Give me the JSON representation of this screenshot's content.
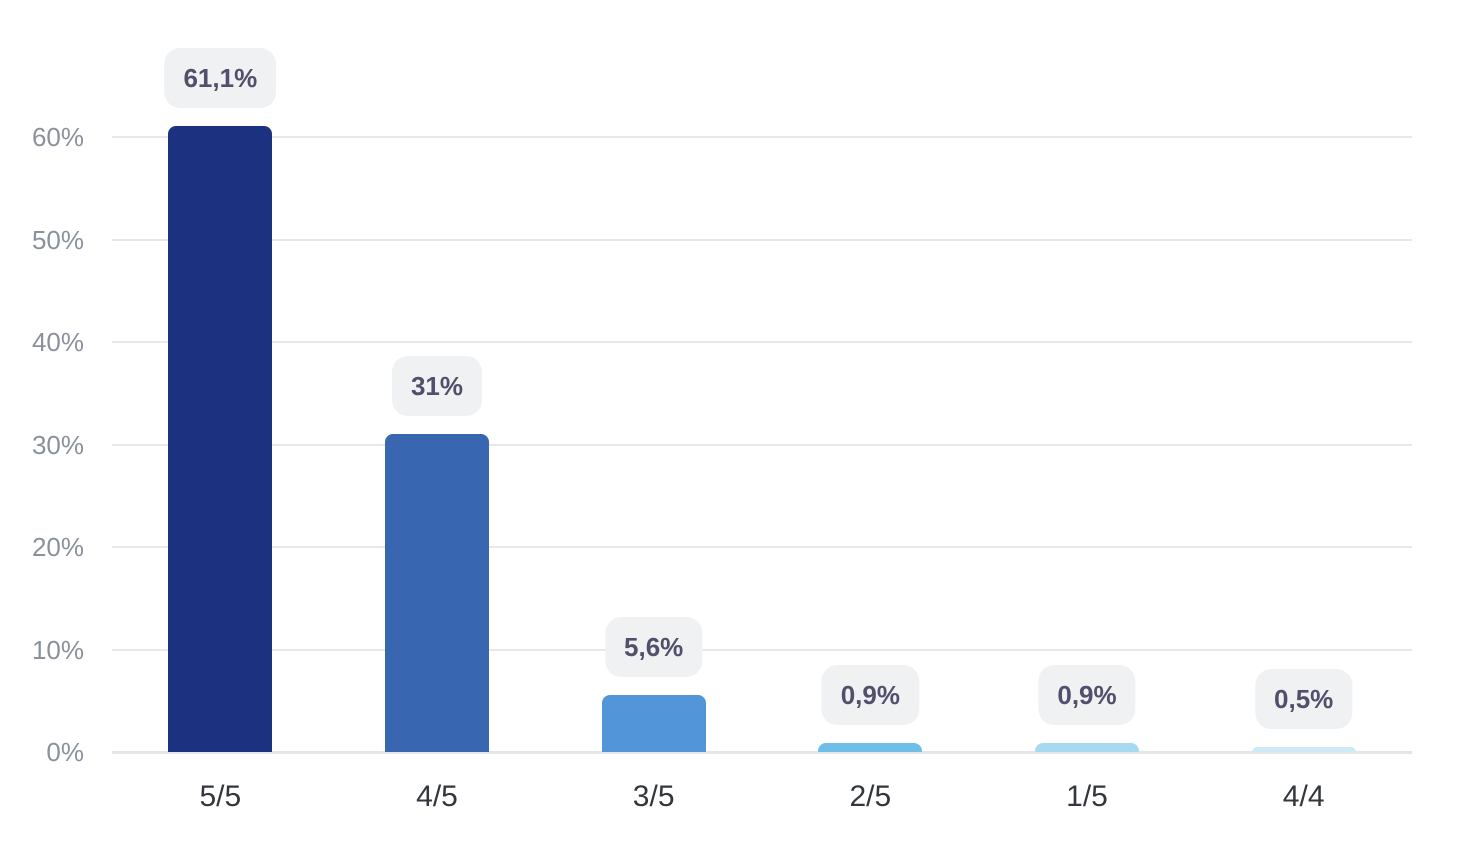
{
  "chart_data": {
    "type": "bar",
    "title": "",
    "xlabel": "",
    "ylabel": "",
    "categories": [
      "5/5",
      "4/5",
      "3/5",
      "2/5",
      "1/5",
      "4/4"
    ],
    "values": [
      61.1,
      31,
      5.6,
      0.9,
      0.9,
      0.5
    ],
    "value_labels": [
      "61,1%",
      "31%",
      "5,6%",
      "0,9%",
      "0,9%",
      "0,5%"
    ],
    "bar_colors": [
      "#1d3181",
      "#3866b0",
      "#5295d8",
      "#6ebee9",
      "#a7daf0",
      "#cfe9f6"
    ],
    "y_ticks": [
      {
        "value": 0,
        "label": "0%"
      },
      {
        "value": 10,
        "label": "10%"
      },
      {
        "value": 20,
        "label": "20%"
      },
      {
        "value": 30,
        "label": "30%"
      },
      {
        "value": 40,
        "label": "40%"
      },
      {
        "value": 50,
        "label": "50%"
      },
      {
        "value": 60,
        "label": "60%"
      }
    ],
    "ylim": [
      0,
      65
    ],
    "grid": true,
    "legend": "none"
  },
  "colors": {
    "background": "#ffffff",
    "gridline": "#e7e8ea",
    "baseline": "#e4e5e7",
    "badge_background": "#f0f1f2",
    "badge_text": "#514f6b",
    "y_axis_label": "#8b919c",
    "x_axis_label": "#33363b"
  }
}
